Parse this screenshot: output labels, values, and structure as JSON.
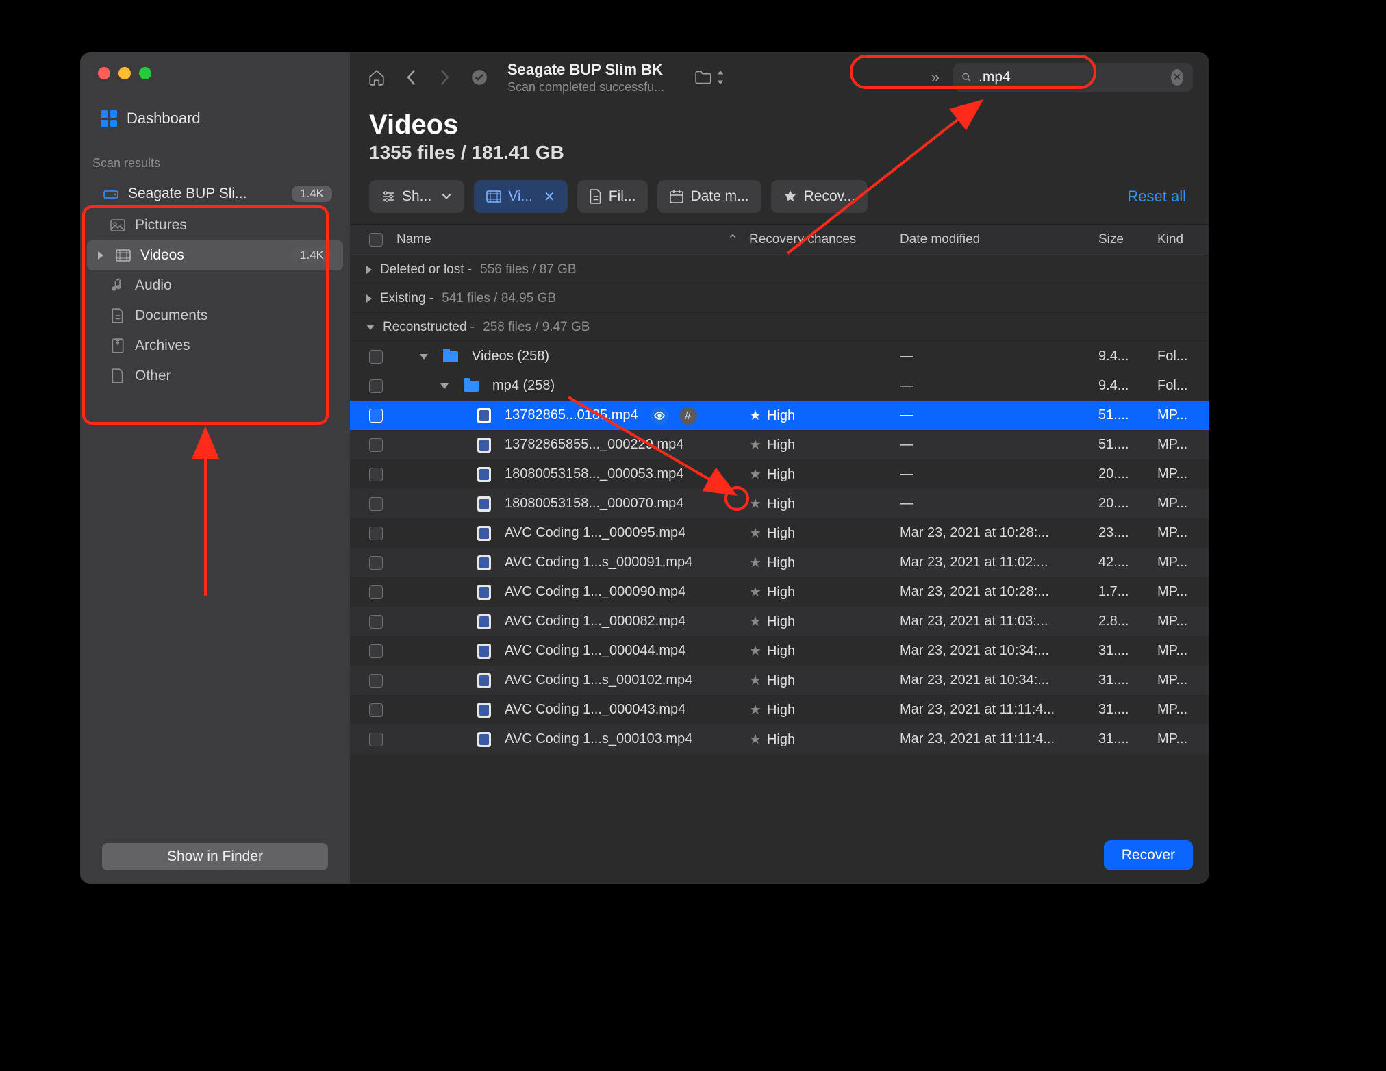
{
  "colors": {
    "traffic_red": "#ff5f57",
    "traffic_yellow": "#febc2e",
    "traffic_green": "#28c840",
    "accent_blue": "#0a66ff",
    "link_blue": "#3094ff"
  },
  "sidebar": {
    "dashboard": "Dashboard",
    "scan_results_label": "Scan results",
    "drive": {
      "label": "Seagate BUP Sli...",
      "count": "1.4K"
    },
    "items": [
      {
        "icon": "picture-icon",
        "label": "Pictures"
      },
      {
        "icon": "video-icon",
        "label": "Videos",
        "count": "1.4K",
        "active": true
      },
      {
        "icon": "audio-icon",
        "label": "Audio"
      },
      {
        "icon": "document-icon",
        "label": "Documents"
      },
      {
        "icon": "archive-icon",
        "label": "Archives"
      },
      {
        "icon": "other-icon",
        "label": "Other"
      }
    ],
    "show_in_finder": "Show in Finder"
  },
  "toolbar": {
    "title": "Seagate BUP Slim BK",
    "subtitle": "Scan completed successfu...",
    "search_value": ".mp4"
  },
  "heading": {
    "title": "Videos",
    "subtitle": "1355 files / 181.41 GB"
  },
  "filters": {
    "show": "Sh...",
    "video": "Vi...",
    "file": "Fil...",
    "date": "Date m...",
    "recovery": "Recov...",
    "reset": "Reset all"
  },
  "columns": {
    "name": "Name",
    "recovery": "Recovery chances",
    "date": "Date modified",
    "size": "Size",
    "kind": "Kind"
  },
  "groups": [
    {
      "label": "Deleted or lost",
      "meta": "556 files / 87 GB",
      "open": false
    },
    {
      "label": "Existing",
      "meta": "541 files / 84.95 GB",
      "open": false
    },
    {
      "label": "Reconstructed",
      "meta": "258 files / 9.47 GB",
      "open": true
    }
  ],
  "tree": {
    "videos_folder": "Videos (258)",
    "videos_size": "9.4...",
    "videos_kind": "Fol...",
    "mp4_folder": "mp4 (258)",
    "mp4_size": "9.4...",
    "mp4_kind": "Fol..."
  },
  "rows": [
    {
      "name": "13782865...0185.mp4",
      "rec": "High",
      "date": "—",
      "size": "51....",
      "kind": "MP...",
      "selected": true,
      "badges": true
    },
    {
      "name": "13782865855..._000229.mp4",
      "rec": "High",
      "date": "—",
      "size": "51....",
      "kind": "MP..."
    },
    {
      "name": "18080053158..._000053.mp4",
      "rec": "High",
      "date": "—",
      "size": "20....",
      "kind": "MP..."
    },
    {
      "name": "18080053158..._000070.mp4",
      "rec": "High",
      "date": "—",
      "size": "20....",
      "kind": "MP..."
    },
    {
      "name": "AVC Coding 1..._000095.mp4",
      "rec": "High",
      "date": "Mar 23, 2021 at 10:28:...",
      "size": "23....",
      "kind": "MP..."
    },
    {
      "name": "AVC Coding 1...s_000091.mp4",
      "rec": "High",
      "date": "Mar 23, 2021 at 11:02:...",
      "size": "42....",
      "kind": "MP..."
    },
    {
      "name": "AVC Coding 1..._000090.mp4",
      "rec": "High",
      "date": "Mar 23, 2021 at 10:28:...",
      "size": "1.7...",
      "kind": "MP..."
    },
    {
      "name": "AVC Coding 1..._000082.mp4",
      "rec": "High",
      "date": "Mar 23, 2021 at 11:03:...",
      "size": "2.8...",
      "kind": "MP..."
    },
    {
      "name": "AVC Coding 1..._000044.mp4",
      "rec": "High",
      "date": "Mar 23, 2021 at 10:34:...",
      "size": "31....",
      "kind": "MP..."
    },
    {
      "name": "AVC Coding 1...s_000102.mp4",
      "rec": "High",
      "date": "Mar 23, 2021 at 10:34:...",
      "size": "31....",
      "kind": "MP..."
    },
    {
      "name": "AVC Coding 1..._000043.mp4",
      "rec": "High",
      "date": "Mar 23, 2021 at 11:11:4...",
      "size": "31....",
      "kind": "MP..."
    },
    {
      "name": "AVC Coding 1...s_000103.mp4",
      "rec": "High",
      "date": "Mar 23, 2021 at 11:11:4...",
      "size": "31....",
      "kind": "MP..."
    }
  ],
  "recover_label": "Recover"
}
